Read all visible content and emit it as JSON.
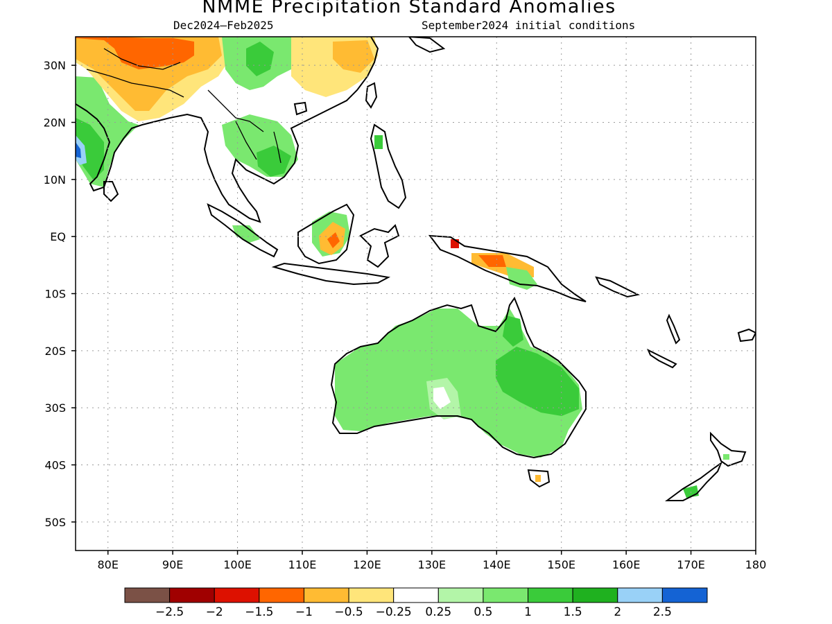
{
  "title": "NMME Precipitation Standard Anomalies",
  "subtitle_left": "Dec2024–Feb2025",
  "subtitle_right": "September2024 initial conditions",
  "map": {
    "lon_range": [
      75,
      180
    ],
    "lat_range": [
      -55,
      35
    ],
    "lat_ticks": [
      {
        "value": 30,
        "label": "30N"
      },
      {
        "value": 20,
        "label": "20N"
      },
      {
        "value": 10,
        "label": "10N"
      },
      {
        "value": 0,
        "label": "EQ"
      },
      {
        "value": -10,
        "label": "10S"
      },
      {
        "value": -20,
        "label": "20S"
      },
      {
        "value": -30,
        "label": "30S"
      },
      {
        "value": -40,
        "label": "40S"
      },
      {
        "value": -50,
        "label": "50S"
      }
    ],
    "lon_ticks": [
      {
        "value": 80,
        "label": "80E"
      },
      {
        "value": 90,
        "label": "90E"
      },
      {
        "value": 100,
        "label": "100E"
      },
      {
        "value": 110,
        "label": "110E"
      },
      {
        "value": 120,
        "label": "120E"
      },
      {
        "value": 130,
        "label": "130E"
      },
      {
        "value": 140,
        "label": "140E"
      },
      {
        "value": 150,
        "label": "150E"
      },
      {
        "value": 160,
        "label": "160E"
      },
      {
        "value": 170,
        "label": "170E"
      },
      {
        "value": 180,
        "label": "180"
      }
    ],
    "grid": true
  },
  "colorbar": {
    "colors": [
      "#7b5146",
      "#a00000",
      "#dd1100",
      "#ff6600",
      "#ffbb33",
      "#ffe57a",
      "#ffffff",
      "#b3f5a8",
      "#7ae86f",
      "#3acb3a",
      "#1fb11f",
      "#99d1f7",
      "#1463d4"
    ],
    "labels": [
      "−2.5",
      "−2",
      "−1.5",
      "−1",
      "−0.5",
      "−0.25",
      "0.25",
      "0.5",
      "1",
      "1.5",
      "2",
      "2.5"
    ]
  }
}
